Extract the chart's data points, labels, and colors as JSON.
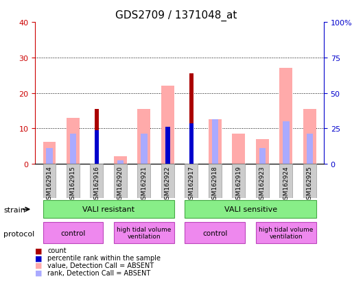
{
  "title": "GDS2709 / 1371048_at",
  "samples": [
    "GSM162914",
    "GSM162915",
    "GSM162916",
    "GSM162920",
    "GSM162921",
    "GSM162922",
    "GSM162917",
    "GSM162918",
    "GSM162919",
    "GSM162923",
    "GSM162924",
    "GSM162925"
  ],
  "count": [
    0,
    0,
    15.5,
    0,
    0,
    0,
    25.5,
    0,
    0,
    0,
    0,
    0
  ],
  "percentile": [
    0,
    0,
    9.5,
    0,
    0,
    10.5,
    11.5,
    0,
    0,
    0,
    0,
    0
  ],
  "value_absent": [
    6.2,
    13.0,
    0,
    2.2,
    15.5,
    22.0,
    0,
    12.5,
    8.5,
    7.0,
    27.0,
    15.5
  ],
  "rank_absent": [
    4.5,
    8.5,
    0,
    1.0,
    8.5,
    0,
    0,
    12.5,
    0,
    4.5,
    12.0,
    8.5
  ],
  "ylim_left": [
    0,
    40
  ],
  "ylim_right": [
    0,
    100
  ],
  "yticks_left": [
    0,
    10,
    20,
    30,
    40
  ],
  "yticks_right": [
    0,
    25,
    50,
    75,
    100
  ],
  "ytick_labels_left": [
    "0",
    "10",
    "20",
    "30",
    "40"
  ],
  "ytick_labels_right": [
    "0",
    "25",
    "50",
    "75",
    "100%"
  ],
  "color_count": "#aa0000",
  "color_percentile": "#0000cc",
  "color_value_absent": "#ffaaaa",
  "color_rank_absent": "#aaaaff",
  "bg_plot": "#ffffff",
  "bg_xticklabel": "#cccccc",
  "strain_resistant_label": "VALI resistant",
  "strain_sensitive_label": "VALI sensitive",
  "strain_resistant_indices": [
    0,
    5
  ],
  "strain_sensitive_indices": [
    6,
    11
  ],
  "strain_color": "#88ee88",
  "protocol_control1_indices": [
    0,
    2
  ],
  "protocol_htv1_indices": [
    3,
    5
  ],
  "protocol_control2_indices": [
    6,
    8
  ],
  "protocol_htv2_indices": [
    9,
    11
  ],
  "protocol_control_label": "control",
  "protocol_htv_label": "high tidal volume\nventilation",
  "protocol_color_control": "#ee88ee",
  "protocol_color_htv": "#dd66dd",
  "legend_items": [
    "count",
    "percentile rank within the sample",
    "value, Detection Call = ABSENT",
    "rank, Detection Call = ABSENT"
  ],
  "legend_colors": [
    "#aa0000",
    "#0000cc",
    "#ffaaaa",
    "#aaaaff"
  ],
  "bar_width": 0.55
}
